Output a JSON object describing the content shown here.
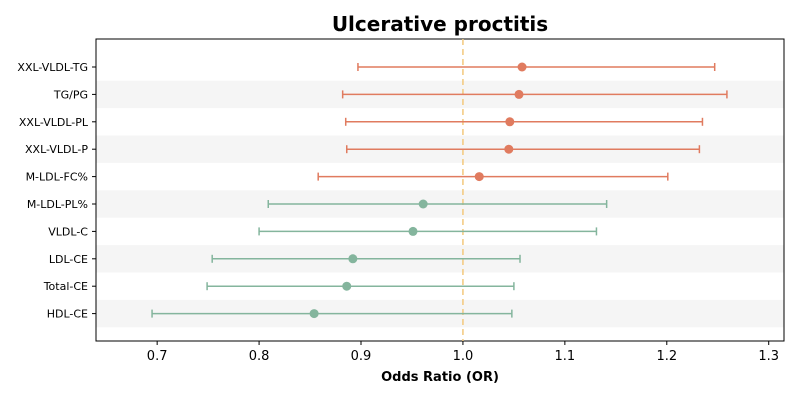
{
  "chart_data": {
    "type": "forest",
    "title": "Ulcerative proctitis",
    "xlabel": "Odds Ratio (OR)",
    "ylabel": "",
    "xlim": [
      0.64,
      1.315
    ],
    "x_ticks": [
      0.7,
      0.8,
      0.9,
      1.0,
      1.1,
      1.2,
      1.3
    ],
    "x_tick_labels": [
      "0.7",
      "0.8",
      "0.9",
      "1.0",
      "1.1",
      "1.2",
      "1.3"
    ],
    "reference_line": 1.0,
    "colors": {
      "positive": "#e07b5f",
      "negative": "#84b59d",
      "reference": "#f3c97c",
      "stripe": "#f5f5f5"
    },
    "rows": [
      {
        "label": "XXL-VLDL-TG",
        "or": 1.058,
        "lower": 0.897,
        "upper": 1.247,
        "group": "positive"
      },
      {
        "label": "TG/PG",
        "or": 1.055,
        "lower": 0.882,
        "upper": 1.259,
        "group": "positive"
      },
      {
        "label": "XXL-VLDL-PL",
        "or": 1.046,
        "lower": 0.885,
        "upper": 1.235,
        "group": "positive"
      },
      {
        "label": "XXL-VLDL-P",
        "or": 1.045,
        "lower": 0.886,
        "upper": 1.232,
        "group": "positive"
      },
      {
        "label": "M-LDL-FC%",
        "or": 1.016,
        "lower": 0.858,
        "upper": 1.201,
        "group": "positive"
      },
      {
        "label": "M-LDL-PL%",
        "or": 0.961,
        "lower": 0.809,
        "upper": 1.141,
        "group": "negative"
      },
      {
        "label": "VLDL-C",
        "or": 0.951,
        "lower": 0.8,
        "upper": 1.131,
        "group": "negative"
      },
      {
        "label": "LDL-CE",
        "or": 0.892,
        "lower": 0.754,
        "upper": 1.056,
        "group": "negative"
      },
      {
        "label": "Total-CE",
        "or": 0.886,
        "lower": 0.749,
        "upper": 1.05,
        "group": "negative"
      },
      {
        "label": "HDL-CE",
        "or": 0.854,
        "lower": 0.695,
        "upper": 1.048,
        "group": "negative"
      }
    ]
  }
}
